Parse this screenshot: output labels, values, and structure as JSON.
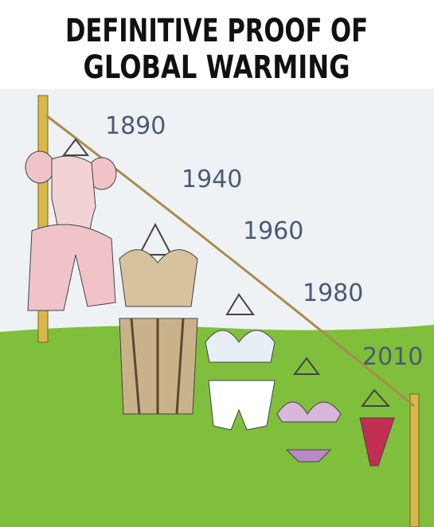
{
  "title": {
    "lines": [
      "DEFINITIVE PROOF OF",
      "GLOBAL WARMING"
    ]
  },
  "labels": [
    "1890",
    "1940",
    "1960",
    "1980",
    "2010"
  ]
}
